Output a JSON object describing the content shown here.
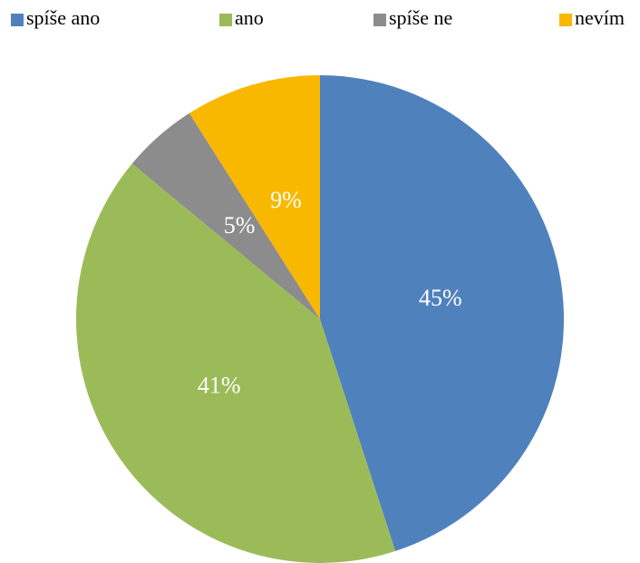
{
  "chart_data": {
    "type": "pie",
    "categories": [
      "spíše ano",
      "ano",
      "spíše ne",
      "nevím"
    ],
    "values": [
      45,
      41,
      5,
      9
    ],
    "value_labels": [
      "45%",
      "41%",
      "5%",
      "9%"
    ],
    "colors": [
      "#4f81bd",
      "#9bbb59",
      "#8c8c8c",
      "#f9b800"
    ],
    "legend": "top"
  }
}
